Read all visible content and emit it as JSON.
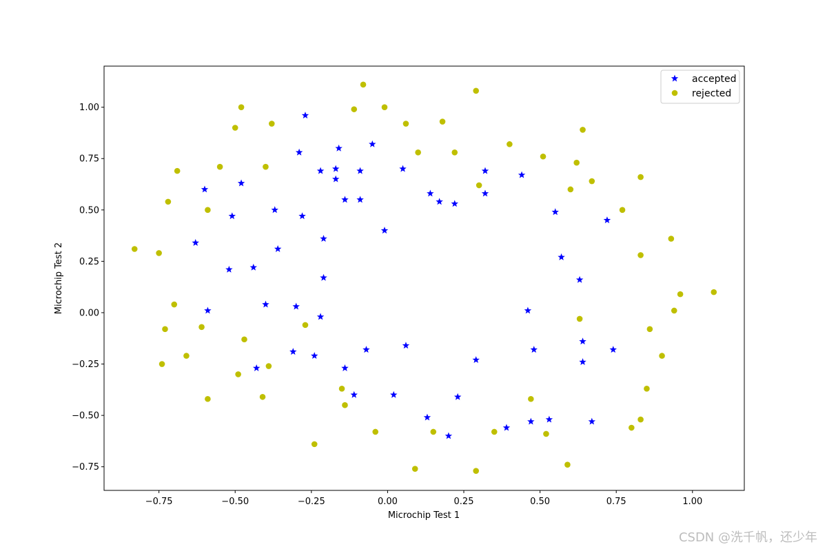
{
  "chart_data": {
    "type": "scatter",
    "title": "",
    "xlabel": "Microchip Test 1",
    "ylabel": "Microchip Test 2",
    "xlim": [
      -0.93,
      1.17
    ],
    "ylim": [
      -0.865,
      1.2
    ],
    "xticks": [
      -0.75,
      -0.5,
      -0.25,
      0.0,
      0.25,
      0.5,
      0.75,
      1.0
    ],
    "xtick_labels": [
      "−0.75",
      "−0.50",
      "−0.25",
      "0.00",
      "0.25",
      "0.50",
      "0.75",
      "1.00"
    ],
    "yticks": [
      -0.75,
      -0.5,
      -0.25,
      0.0,
      0.25,
      0.5,
      0.75,
      1.0
    ],
    "ytick_labels": [
      "−0.75",
      "−0.50",
      "−0.25",
      "0.00",
      "0.25",
      "0.50",
      "0.75",
      "1.00"
    ],
    "grid": false,
    "legend_position": "top-right",
    "series": [
      {
        "name": "accepted",
        "marker": "star",
        "color": "#0000ff",
        "x": [
          -0.27,
          -0.05,
          -0.29,
          -0.16,
          -0.22,
          -0.17,
          -0.17,
          -0.09,
          0.05,
          -0.6,
          -0.48,
          -0.14,
          -0.09,
          0.14,
          0.17,
          0.22,
          0.32,
          0.32,
          0.44,
          -0.51,
          -0.37,
          -0.28,
          -0.01,
          0.55,
          0.72,
          -0.63,
          -0.36,
          -0.21,
          -0.52,
          -0.44,
          0.57,
          0.63,
          -0.21,
          -0.4,
          -0.3,
          -0.59,
          -0.22,
          0.46,
          0.64,
          0.06,
          -0.07,
          0.48,
          0.74,
          -0.31,
          -0.24,
          0.29,
          0.64,
          -0.14,
          -0.43,
          -0.11,
          0.02,
          0.23,
          0.13,
          0.2,
          0.39,
          0.47,
          0.53,
          0.67
        ],
        "y": [
          0.96,
          0.82,
          0.78,
          0.8,
          0.69,
          0.7,
          0.65,
          0.69,
          0.7,
          0.6,
          0.63,
          0.55,
          0.55,
          0.58,
          0.54,
          0.53,
          0.69,
          0.58,
          0.67,
          0.47,
          0.5,
          0.47,
          0.4,
          0.49,
          0.45,
          0.34,
          0.31,
          0.36,
          0.21,
          0.22,
          0.27,
          0.16,
          0.17,
          0.04,
          0.03,
          0.01,
          -0.02,
          0.01,
          -0.14,
          -0.16,
          -0.18,
          -0.18,
          -0.18,
          -0.19,
          -0.21,
          -0.23,
          -0.24,
          -0.27,
          -0.27,
          -0.4,
          -0.4,
          -0.41,
          -0.51,
          -0.6,
          -0.56,
          -0.53,
          -0.52,
          -0.53
        ]
      },
      {
        "name": "rejected",
        "marker": "circle",
        "color": "#bfbf00",
        "x": [
          -0.08,
          0.29,
          -0.48,
          -0.11,
          -0.01,
          -0.5,
          -0.38,
          0.06,
          0.18,
          0.64,
          0.4,
          0.1,
          0.22,
          0.51,
          0.62,
          -0.55,
          -0.4,
          -0.69,
          0.83,
          0.6,
          0.67,
          0.3,
          -0.72,
          -0.59,
          0.77,
          -0.83,
          -0.75,
          0.93,
          0.83,
          1.07,
          0.96,
          -0.7,
          0.94,
          -0.61,
          -0.27,
          0.63,
          -0.73,
          -0.47,
          0.86,
          -0.66,
          0.9,
          -0.74,
          -0.39,
          -0.49,
          -0.15,
          0.85,
          -0.59,
          -0.41,
          0.47,
          -0.14,
          0.83,
          0.8,
          -0.04,
          0.15,
          0.35,
          0.52,
          -0.24,
          0.59,
          0.09,
          0.29
        ],
        "y": [
          1.11,
          1.08,
          1.0,
          0.99,
          1.0,
          0.9,
          0.92,
          0.92,
          0.93,
          0.89,
          0.82,
          0.78,
          0.78,
          0.76,
          0.73,
          0.71,
          0.71,
          0.69,
          0.66,
          0.6,
          0.64,
          0.62,
          0.54,
          0.5,
          0.5,
          0.31,
          0.29,
          0.36,
          0.28,
          0.1,
          0.09,
          0.04,
          0.01,
          -0.07,
          -0.06,
          -0.03,
          -0.08,
          -0.13,
          -0.08,
          -0.21,
          -0.21,
          -0.25,
          -0.26,
          -0.3,
          -0.37,
          -0.37,
          -0.42,
          -0.41,
          -0.42,
          -0.45,
          -0.52,
          -0.56,
          -0.58,
          -0.58,
          -0.58,
          -0.59,
          -0.64,
          -0.74,
          -0.76,
          -0.77
        ]
      }
    ]
  },
  "watermark": "CSDN @洗千帆，还少年"
}
